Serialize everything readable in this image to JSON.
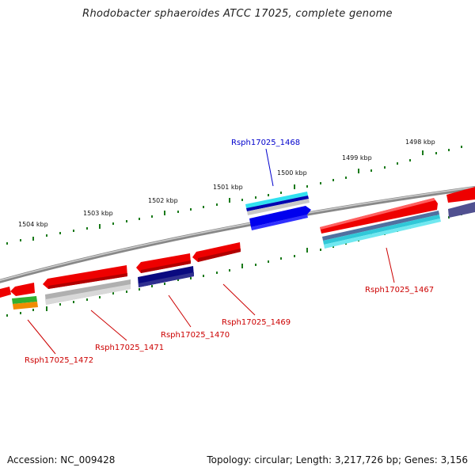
{
  "title": "Rhodobacter sphaeroides ATCC 17025, complete genome",
  "footer": {
    "accession": "Accession: NC_009428",
    "info": "Topology: circular; Length: 3,217,726 bp; Genes: 3,156"
  },
  "kbp_labels": [
    "1504 kbp",
    "1503 kbp",
    "1502 kbp",
    "1501 kbp",
    "1500 kbp",
    "1499 kbp",
    "1498 kbp"
  ],
  "gene_labels": [
    {
      "text": "Rsph17025_1468",
      "color": "#0000cc"
    },
    {
      "text": "Rsph17025_1467",
      "color": "#cc0000"
    },
    {
      "text": "Rsph17025_1469",
      "color": "#cc0000"
    },
    {
      "text": "Rsph17025_1470",
      "color": "#cc0000"
    },
    {
      "text": "Rsph17025_1471",
      "color": "#cc0000"
    },
    {
      "text": "Rsph17025_1472",
      "color": "#cc0000"
    }
  ],
  "colors": {
    "backbone": "#808080",
    "tick": "#1a7a1a",
    "gene_red": "#ee0000",
    "gene_blue": "#0000ee",
    "gene_navy": "#0a0a80",
    "gene_gray": "#b0b0b0",
    "gene_cyan": "#30d0e0",
    "gene_slate": "#5070a0",
    "gene_green": "#30b030",
    "gene_orange": "#f08c00",
    "gene_purple": "#505090"
  }
}
